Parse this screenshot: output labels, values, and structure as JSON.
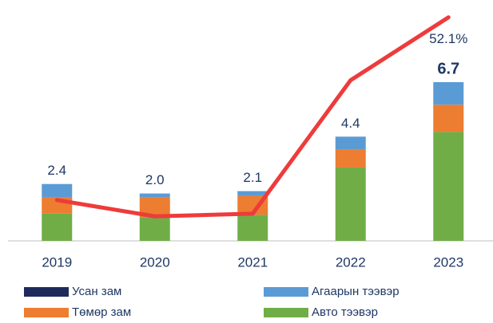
{
  "chart_data": {
    "type": "bar",
    "categories": [
      "2019",
      "2020",
      "2021",
      "2022",
      "2023"
    ],
    "series": [
      {
        "name": "Усан зам",
        "color": "#1f2a5c",
        "values": [
          0,
          0,
          0,
          0,
          0
        ]
      },
      {
        "name": "Агаарын тээвэр",
        "color": "#5b9bd5",
        "values": [
          0.55,
          0.15,
          0.2,
          0.55,
          0.95
        ]
      },
      {
        "name": "Төмөр зам",
        "color": "#ed7d31",
        "values": [
          0.7,
          0.85,
          0.8,
          0.75,
          1.15
        ]
      },
      {
        "name": "Авто тээвэр",
        "color": "#70ad47",
        "values": [
          1.15,
          1.0,
          1.1,
          3.1,
          4.6
        ]
      }
    ],
    "stack_order": [
      3,
      2,
      1,
      0
    ],
    "totals": [
      2.4,
      2.0,
      2.1,
      4.4,
      6.7
    ],
    "total_labels": [
      "2.4",
      "2.0",
      "2.1",
      "4.4",
      "6.7"
    ],
    "line": {
      "type": "line",
      "color": "#ee3b3b",
      "axis": "y2",
      "values": [
        -15,
        -21,
        -20,
        29,
        52.1
      ],
      "value_labels": [
        null,
        null,
        null,
        null,
        "52.1%"
      ]
    },
    "ylim": [
      0,
      10
    ],
    "y2lim": [
      -30,
      57
    ]
  }
}
